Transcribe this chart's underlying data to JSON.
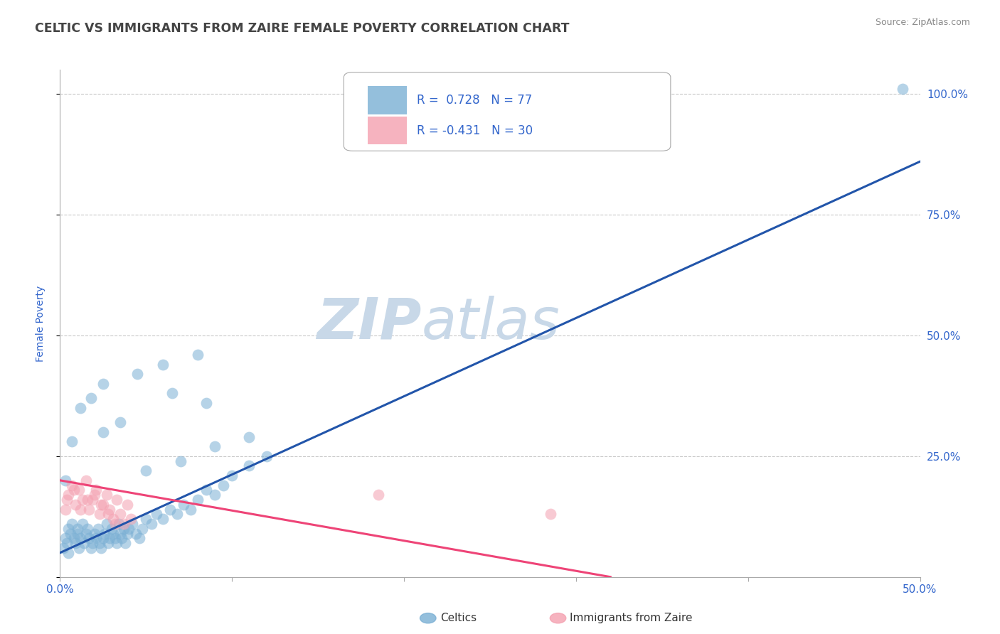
{
  "title": "CELTIC VS IMMIGRANTS FROM ZAIRE FEMALE POVERTY CORRELATION CHART",
  "source_text": "Source: ZipAtlas.com",
  "ylabel_left": "Female Poverty",
  "x_min": 0.0,
  "x_max": 0.5,
  "y_min": 0.0,
  "y_max": 1.05,
  "legend_label_blue": "R =  0.728   N = 77",
  "legend_label_pink": "R = -0.431   N = 30",
  "legend_celtics": "Celtics",
  "legend_zaire": "Immigrants from Zaire",
  "blue_color": "#7AAFD4",
  "pink_color": "#F4A0B0",
  "blue_line_color": "#2255AA",
  "pink_line_color": "#EE4477",
  "watermark_zip": "ZIP",
  "watermark_atlas": "atlas",
  "watermark_color": "#C8D8E8",
  "grid_color": "#BBBBBB",
  "title_color": "#444444",
  "axis_label_color": "#3366CC",
  "blue_scatter_x": [
    0.002,
    0.003,
    0.004,
    0.005,
    0.005,
    0.006,
    0.007,
    0.008,
    0.009,
    0.01,
    0.01,
    0.011,
    0.012,
    0.013,
    0.014,
    0.015,
    0.016,
    0.017,
    0.018,
    0.019,
    0.02,
    0.021,
    0.022,
    0.023,
    0.024,
    0.025,
    0.026,
    0.027,
    0.028,
    0.029,
    0.03,
    0.031,
    0.032,
    0.033,
    0.034,
    0.035,
    0.036,
    0.037,
    0.038,
    0.039,
    0.04,
    0.042,
    0.044,
    0.046,
    0.048,
    0.05,
    0.053,
    0.056,
    0.06,
    0.064,
    0.068,
    0.072,
    0.076,
    0.08,
    0.085,
    0.09,
    0.095,
    0.1,
    0.11,
    0.12,
    0.003,
    0.007,
    0.012,
    0.018,
    0.025,
    0.035,
    0.05,
    0.07,
    0.09,
    0.11,
    0.025,
    0.045,
    0.065,
    0.085,
    0.06,
    0.08,
    0.49
  ],
  "blue_scatter_y": [
    0.06,
    0.08,
    0.07,
    0.1,
    0.05,
    0.09,
    0.11,
    0.08,
    0.07,
    0.1,
    0.09,
    0.06,
    0.08,
    0.11,
    0.07,
    0.09,
    0.1,
    0.08,
    0.06,
    0.07,
    0.09,
    0.08,
    0.1,
    0.07,
    0.06,
    0.08,
    0.09,
    0.11,
    0.07,
    0.08,
    0.1,
    0.09,
    0.08,
    0.07,
    0.11,
    0.09,
    0.08,
    0.1,
    0.07,
    0.09,
    0.1,
    0.11,
    0.09,
    0.08,
    0.1,
    0.12,
    0.11,
    0.13,
    0.12,
    0.14,
    0.13,
    0.15,
    0.14,
    0.16,
    0.18,
    0.17,
    0.19,
    0.21,
    0.23,
    0.25,
    0.2,
    0.28,
    0.35,
    0.37,
    0.3,
    0.32,
    0.22,
    0.24,
    0.27,
    0.29,
    0.4,
    0.42,
    0.38,
    0.36,
    0.44,
    0.46,
    1.01
  ],
  "pink_scatter_x": [
    0.003,
    0.005,
    0.007,
    0.009,
    0.011,
    0.013,
    0.015,
    0.017,
    0.019,
    0.021,
    0.023,
    0.025,
    0.027,
    0.029,
    0.031,
    0.033,
    0.035,
    0.037,
    0.039,
    0.041,
    0.004,
    0.008,
    0.012,
    0.016,
    0.02,
    0.024,
    0.028,
    0.032,
    0.185,
    0.285
  ],
  "pink_scatter_y": [
    0.14,
    0.17,
    0.19,
    0.15,
    0.18,
    0.16,
    0.2,
    0.14,
    0.16,
    0.18,
    0.13,
    0.15,
    0.17,
    0.14,
    0.12,
    0.16,
    0.13,
    0.11,
    0.15,
    0.12,
    0.16,
    0.18,
    0.14,
    0.16,
    0.17,
    0.15,
    0.13,
    0.11,
    0.17,
    0.13
  ],
  "blue_trend_x": [
    0.0,
    0.5
  ],
  "blue_trend_y": [
    0.05,
    0.86
  ],
  "pink_trend_x": [
    0.0,
    0.32
  ],
  "pink_trend_y": [
    0.2,
    0.0
  ]
}
